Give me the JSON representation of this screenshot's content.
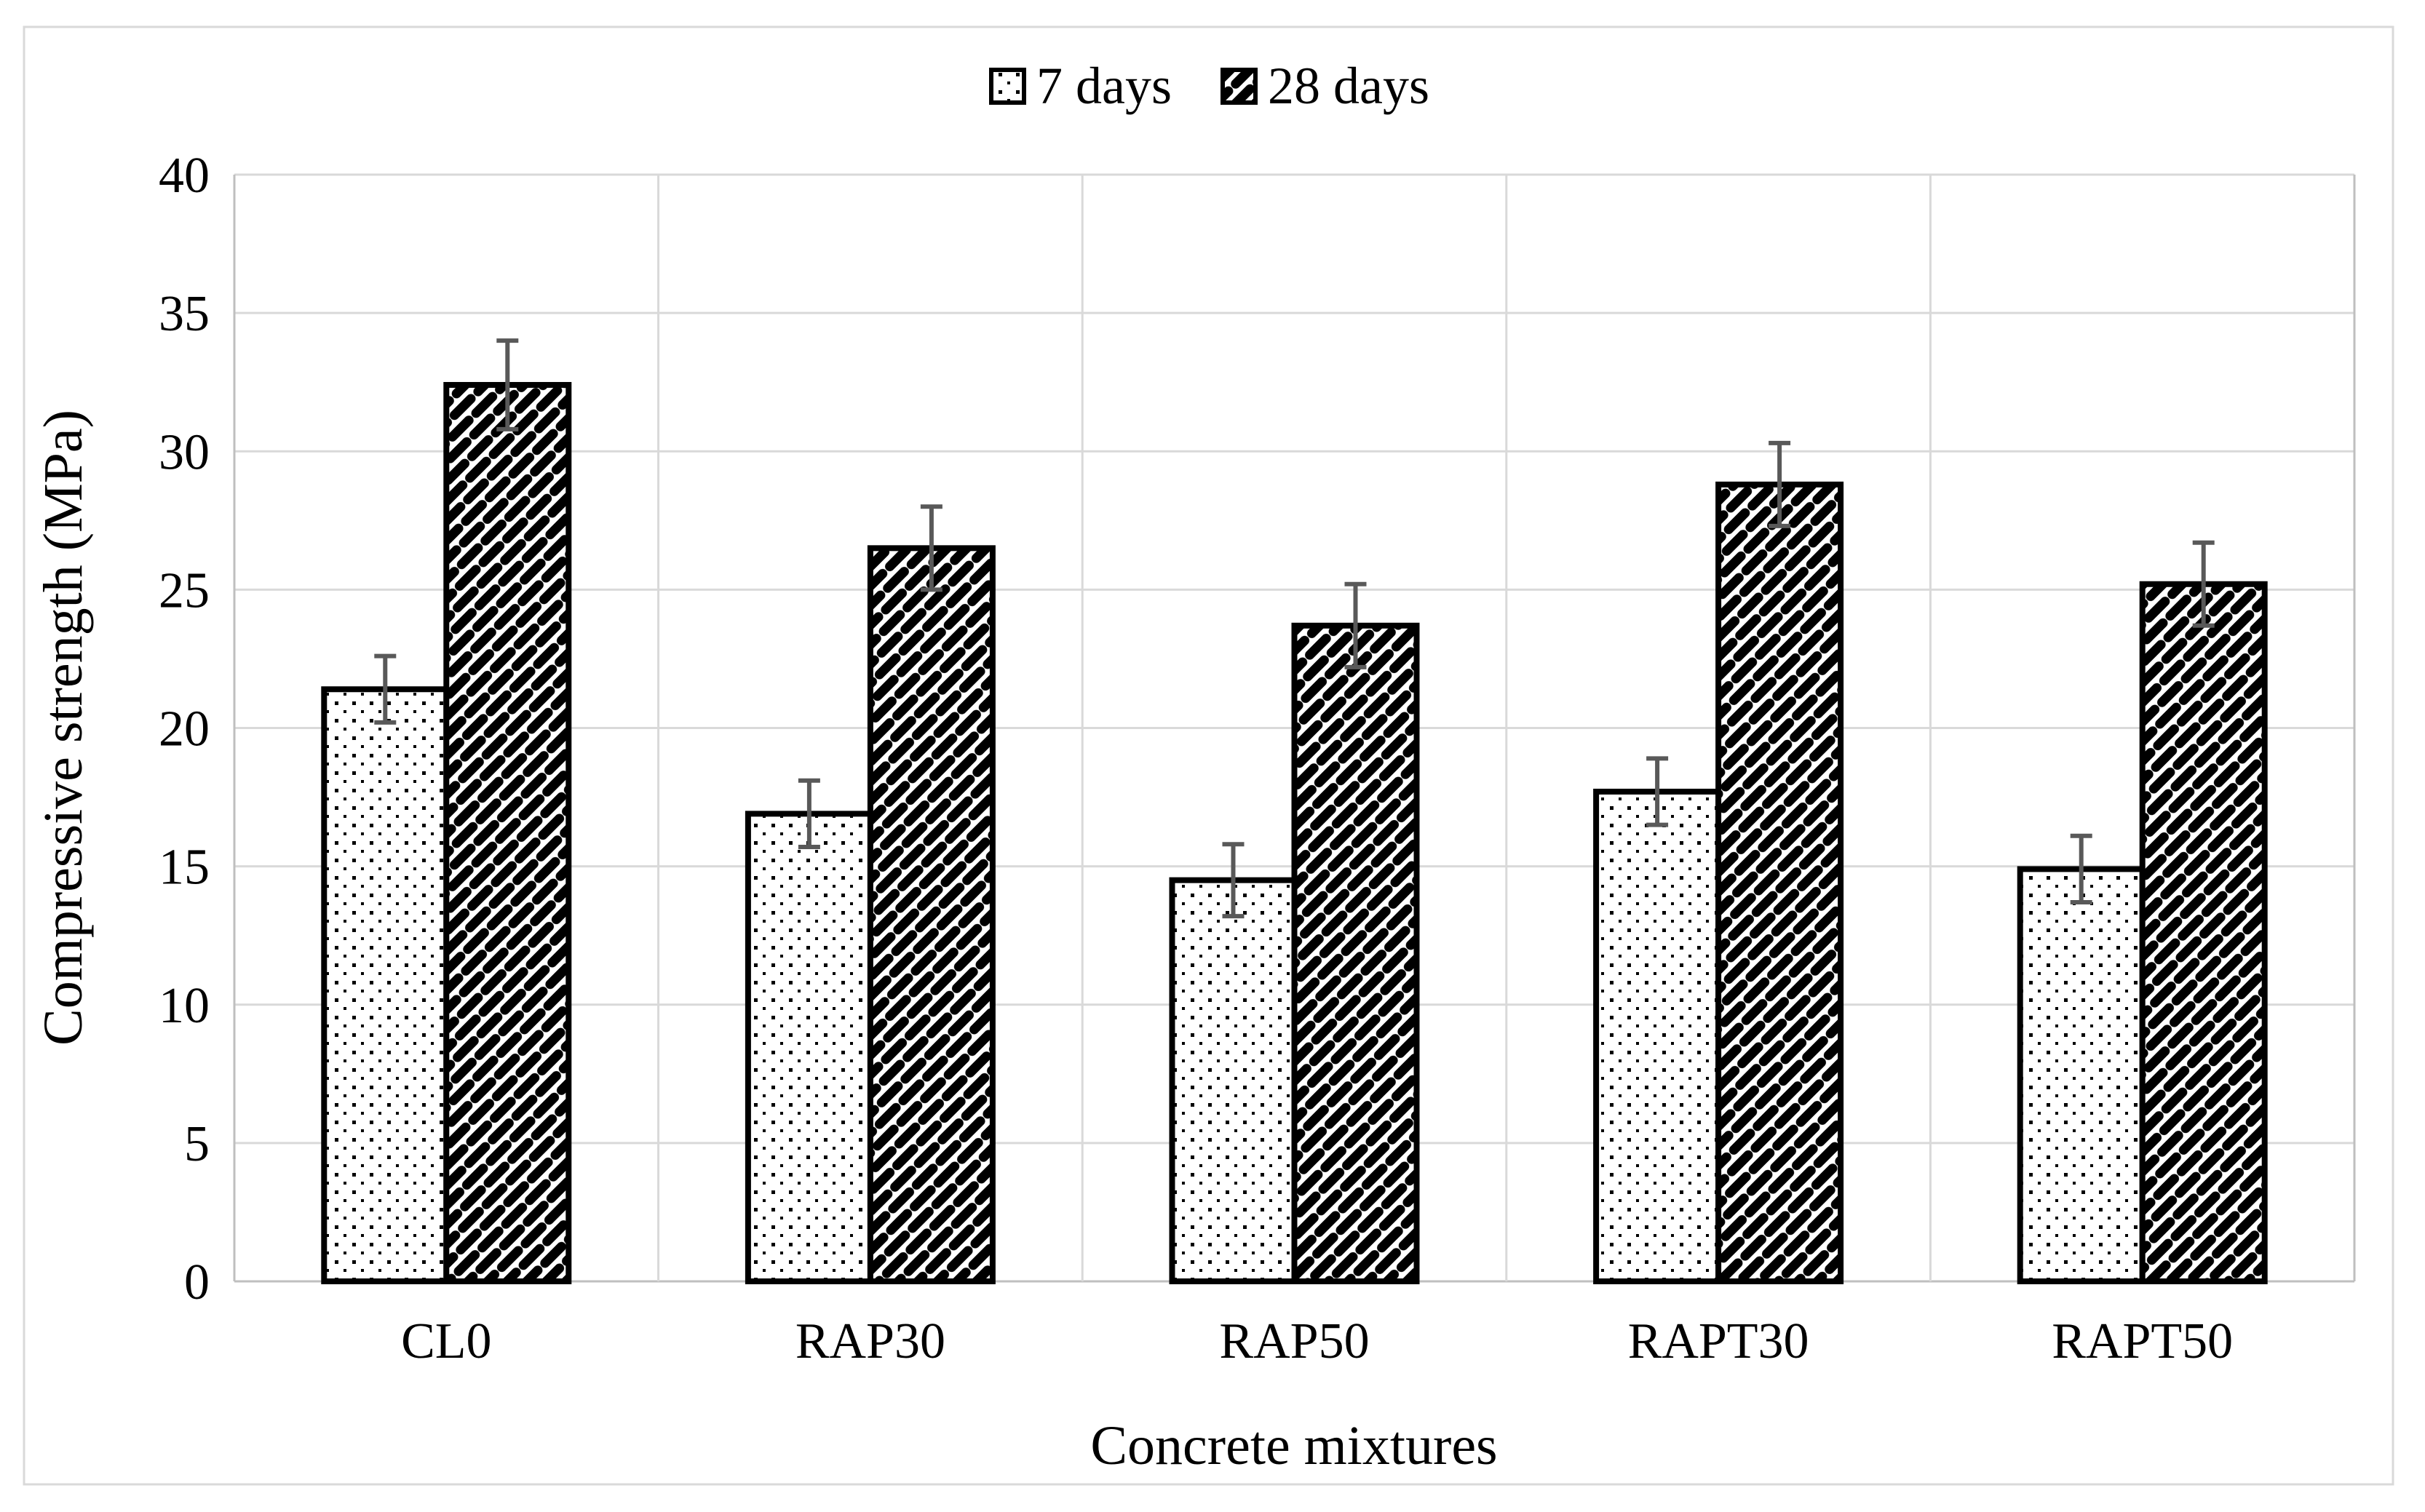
{
  "figure": {
    "description": "Grouped bar chart of concrete compressive strength with error bars",
    "background_color": "#ffffff",
    "border_color": "#d9d9d9"
  },
  "legend": {
    "position": "top-center",
    "items": [
      {
        "label": "7 days",
        "swatch_pattern": "dots"
      },
      {
        "label": "28 days",
        "swatch_pattern": "diagonal-bricks"
      }
    ]
  },
  "chart_data": {
    "type": "bar",
    "title": "",
    "xlabel": "Concrete mixtures",
    "ylabel": "Compressive strength (MPa)",
    "categories": [
      "CL0",
      "RAP30",
      "RAP50",
      "RAPT30",
      "RAPT50"
    ],
    "series": [
      {
        "name": "7 days",
        "fill_pattern": "dots",
        "values": [
          21.4,
          16.9,
          14.5,
          17.7,
          14.9
        ],
        "errors": [
          1.2,
          1.2,
          1.3,
          1.2,
          1.2
        ]
      },
      {
        "name": "28 days",
        "fill_pattern": "diagonal-bricks",
        "values": [
          32.4,
          26.5,
          23.7,
          28.8,
          25.2
        ],
        "errors": [
          1.6,
          1.5,
          1.5,
          1.5,
          1.5
        ]
      }
    ],
    "ylim": [
      0,
      40
    ],
    "ytick_step": 5,
    "ytick_labels": [
      "0",
      "5",
      "10",
      "15",
      "20",
      "25",
      "30",
      "35",
      "40"
    ],
    "grid": "horizontal-gridlines-and-category-separators",
    "legend_position": "top-center",
    "bar_fill": "#ffffff",
    "bar_border_color": "#000000",
    "error_bar_color": "#595959",
    "gridline_color": "#d9d9d9",
    "axis_line_color": "#bfbfbf"
  }
}
